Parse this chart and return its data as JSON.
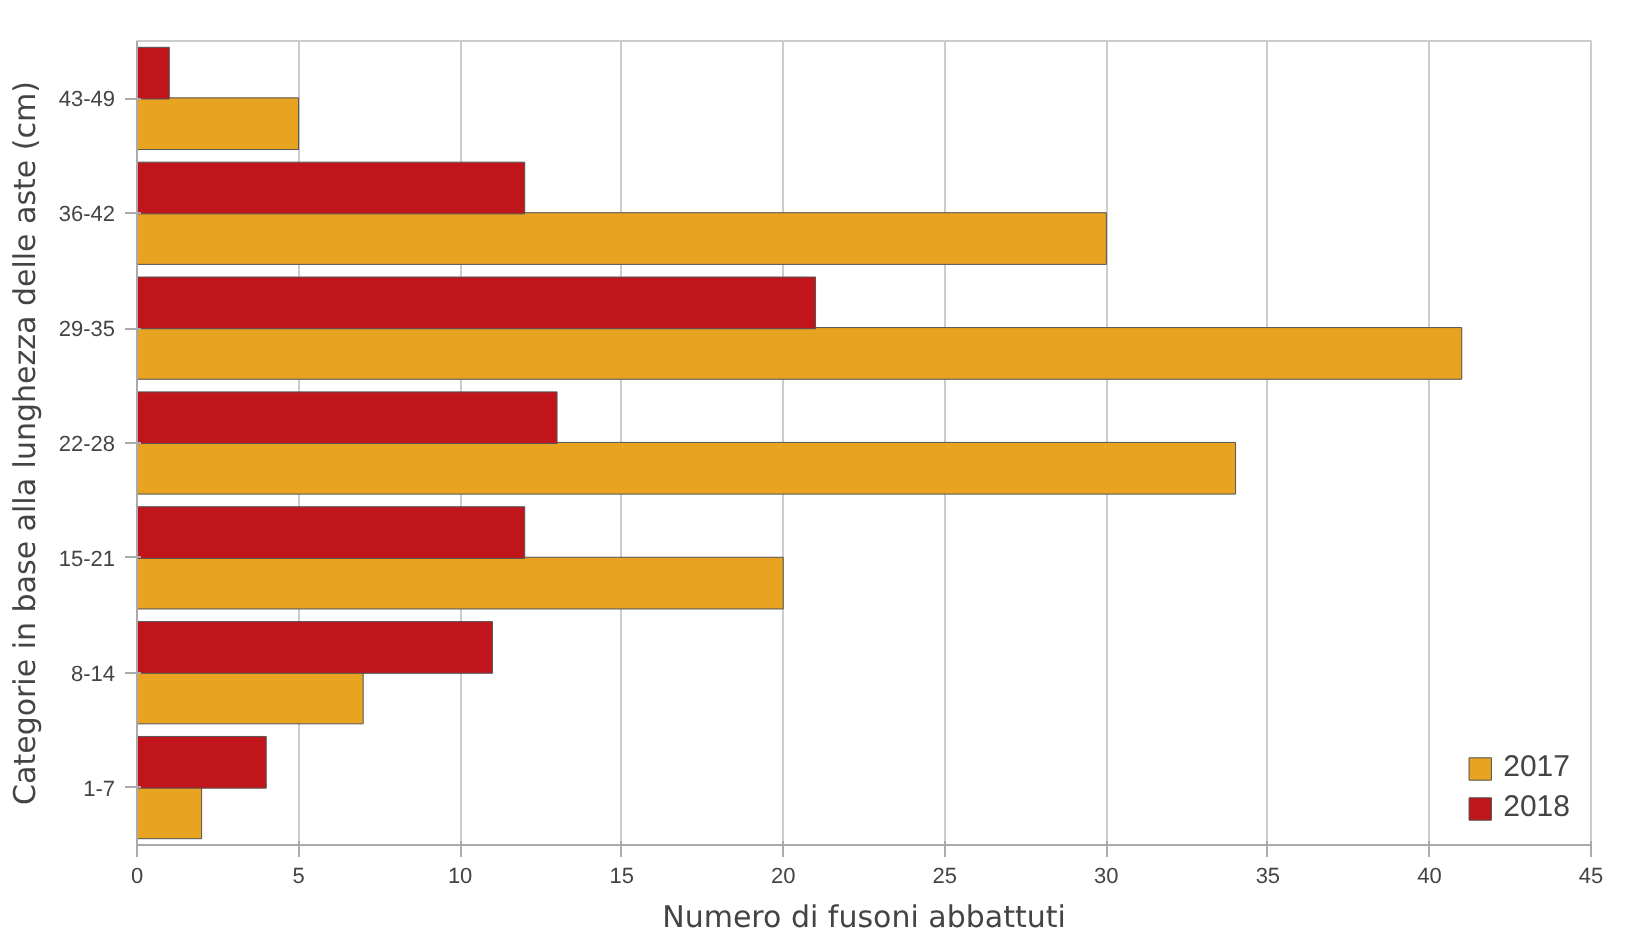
{
  "chart_data": {
    "type": "bar",
    "orientation": "horizontal",
    "xlabel": "Numero di fusoni abbattuti",
    "ylabel": "Categorie in base alla lunghezza delle aste (cm)",
    "categories": [
      "43-49",
      "36-42",
      "29-35",
      "22-28",
      "15-21",
      "8-14",
      "1-7"
    ],
    "series": [
      {
        "name": "2017",
        "color": "#e8a321",
        "values": [
          5,
          30,
          41,
          34,
          20,
          7,
          2
        ]
      },
      {
        "name": "2018",
        "color": "#c0161b",
        "values": [
          1,
          12,
          21,
          13,
          12,
          11,
          4
        ]
      }
    ],
    "xlim": [
      0,
      45
    ],
    "xticks": [
      0,
      5,
      10,
      15,
      20,
      25,
      30,
      35,
      40,
      45
    ],
    "grid": "x",
    "legend": "bottom right"
  }
}
